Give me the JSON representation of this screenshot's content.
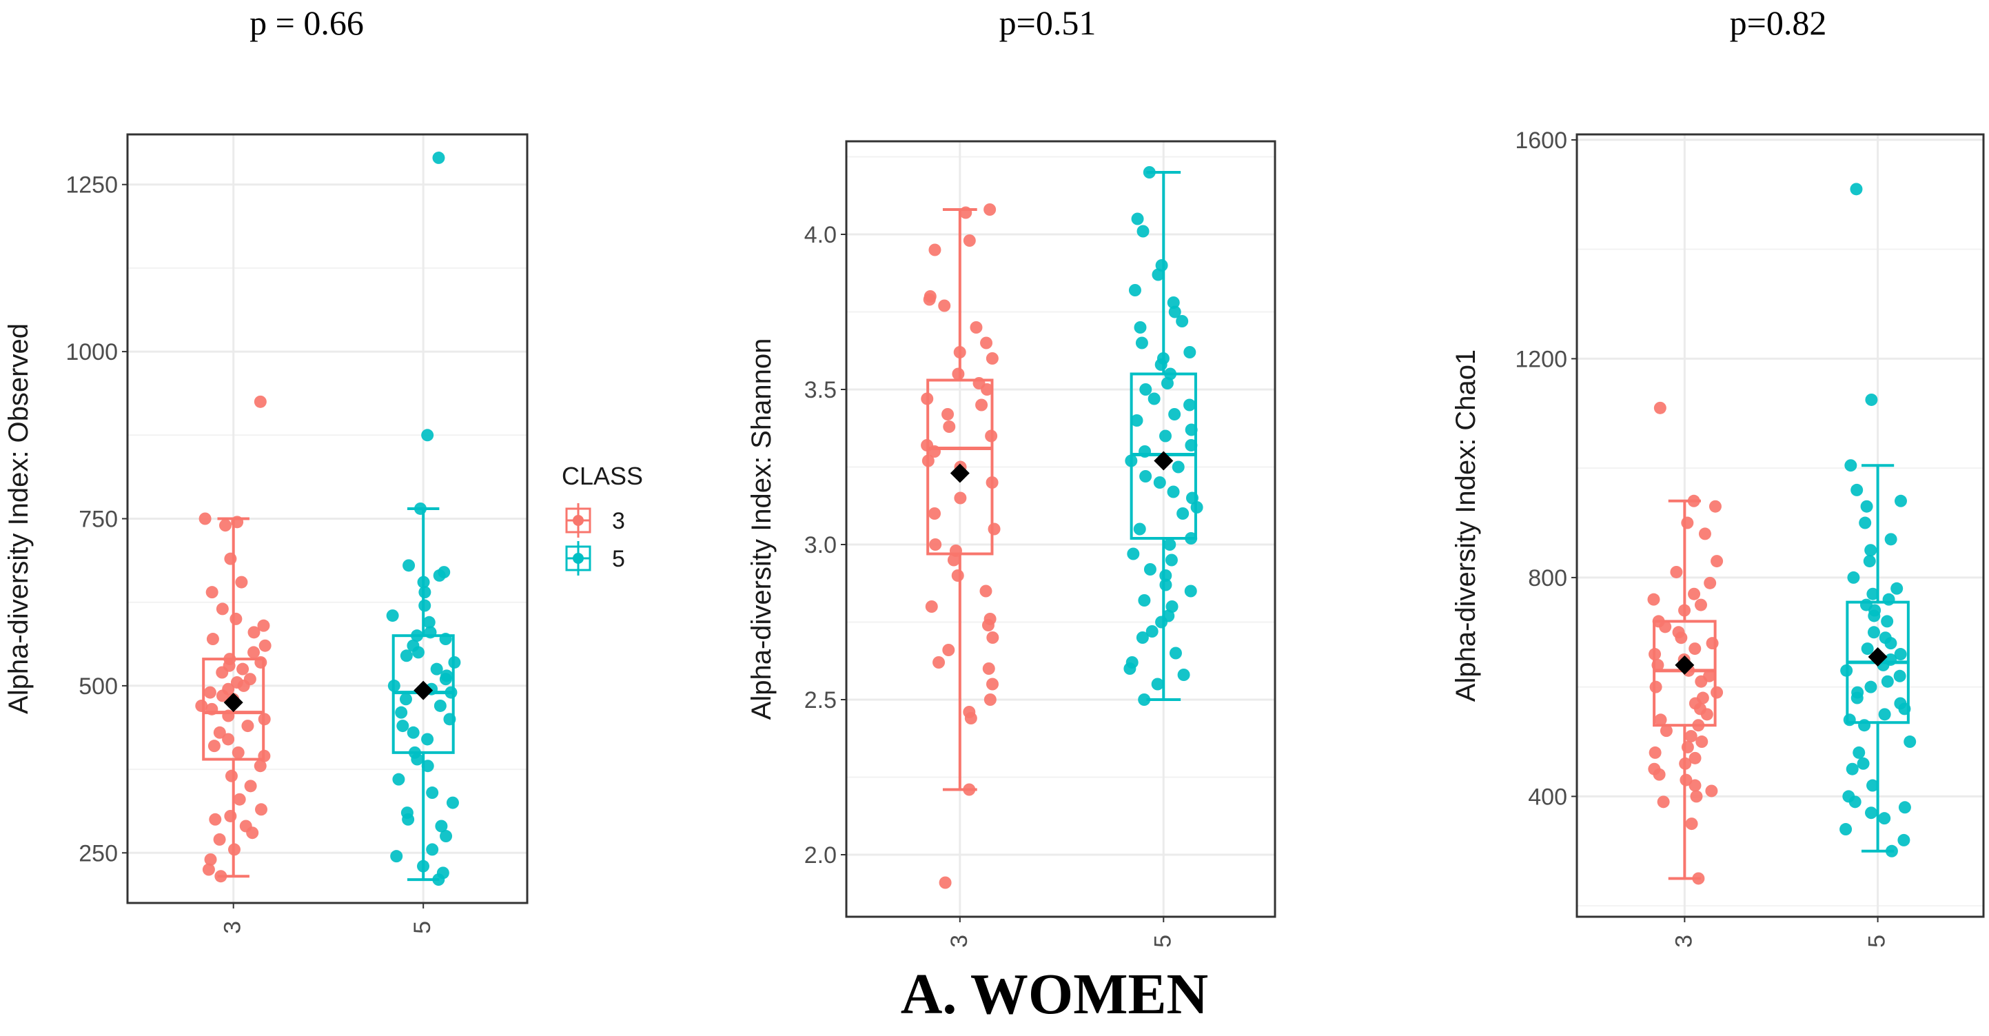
{
  "caption": "A.   WOMEN",
  "colors": {
    "class3": "#F8766D",
    "class5": "#00BFC4",
    "mean": "#000000",
    "grid": "#ebebeb",
    "panel_border": "#333333"
  },
  "legend": {
    "title": "CLASS",
    "entries": [
      "3",
      "5"
    ]
  },
  "chart_data": [
    {
      "type": "box",
      "title": "p = 0.66",
      "ylabel": "Alpha-diversity Index: Observed",
      "ylim": [
        175,
        1325
      ],
      "yticks": [
        250,
        500,
        750,
        1000,
        1250
      ],
      "ytick_labels": [
        "250",
        "500",
        "750",
        "1000",
        "1250"
      ],
      "categories": [
        "3",
        "5"
      ],
      "boxes": [
        {
          "name": "3",
          "whisker_low": 215,
          "q1": 390,
          "median": 460,
          "q3": 540,
          "whisker_high": 750,
          "mean": 475,
          "outliers": [
            925
          ]
        },
        {
          "name": "5",
          "whisker_low": 210,
          "q1": 400,
          "median": 490,
          "q3": 575,
          "whisker_high": 765,
          "mean": 493,
          "outliers": [
            1290,
            875
          ]
        }
      ],
      "points": {
        "3": [
          925,
          750,
          745,
          740,
          690,
          655,
          640,
          615,
          600,
          590,
          580,
          570,
          560,
          550,
          540,
          535,
          530,
          525,
          520,
          510,
          505,
          500,
          495,
          490,
          485,
          480,
          470,
          465,
          455,
          450,
          440,
          430,
          420,
          410,
          400,
          395,
          380,
          365,
          350,
          330,
          315,
          305,
          300,
          290,
          280,
          270,
          255,
          240,
          225,
          215
        ],
        "5": [
          1290,
          875,
          765,
          680,
          670,
          665,
          655,
          640,
          620,
          605,
          595,
          580,
          575,
          570,
          560,
          550,
          545,
          535,
          525,
          515,
          510,
          500,
          495,
          490,
          480,
          470,
          460,
          450,
          440,
          430,
          420,
          400,
          390,
          380,
          360,
          340,
          325,
          310,
          300,
          290,
          275,
          255,
          245,
          230,
          220,
          210
        ]
      }
    },
    {
      "type": "box",
      "title": "p=0.51",
      "ylabel": "Alpha-diversity Index: Shannon",
      "ylim": [
        1.8,
        4.3
      ],
      "yticks": [
        2.0,
        2.5,
        3.0,
        3.5,
        4.0
      ],
      "ytick_labels": [
        "2.0",
        "2.5",
        "3.0",
        "3.5",
        "4.0"
      ],
      "categories": [
        "3",
        "5"
      ],
      "boxes": [
        {
          "name": "3",
          "whisker_low": 2.21,
          "q1": 2.97,
          "median": 3.31,
          "q3": 3.53,
          "whisker_high": 4.08,
          "mean": 3.23,
          "outliers": [
            1.91
          ]
        },
        {
          "name": "5",
          "whisker_low": 2.5,
          "q1": 3.02,
          "median": 3.29,
          "q3": 3.55,
          "whisker_high": 4.2,
          "mean": 3.27,
          "outliers": []
        }
      ],
      "points": {
        "3": [
          4.08,
          4.07,
          3.98,
          3.95,
          3.8,
          3.79,
          3.77,
          3.7,
          3.65,
          3.62,
          3.6,
          3.55,
          3.52,
          3.5,
          3.47,
          3.45,
          3.42,
          3.38,
          3.35,
          3.32,
          3.3,
          3.27,
          3.25,
          3.2,
          3.15,
          3.1,
          3.05,
          3.0,
          2.98,
          2.95,
          2.9,
          2.85,
          2.8,
          2.76,
          2.74,
          2.7,
          2.66,
          2.62,
          2.6,
          2.55,
          2.5,
          2.46,
          2.44,
          2.21,
          1.91
        ],
        "5": [
          4.2,
          4.05,
          4.01,
          3.9,
          3.87,
          3.82,
          3.78,
          3.75,
          3.72,
          3.7,
          3.65,
          3.62,
          3.6,
          3.58,
          3.55,
          3.52,
          3.5,
          3.47,
          3.45,
          3.42,
          3.4,
          3.37,
          3.35,
          3.32,
          3.3,
          3.27,
          3.25,
          3.22,
          3.2,
          3.17,
          3.15,
          3.12,
          3.1,
          3.05,
          3.02,
          3.0,
          2.97,
          2.95,
          2.92,
          2.9,
          2.87,
          2.85,
          2.82,
          2.8,
          2.77,
          2.75,
          2.72,
          2.7,
          2.65,
          2.62,
          2.6,
          2.58,
          2.55,
          2.5
        ]
      }
    },
    {
      "type": "box",
      "title": "p=0.82",
      "ylabel": "Alpha-diversity Index: Chao1",
      "ylim": [
        180,
        1610
      ],
      "yticks": [
        400,
        800,
        1200,
        1600
      ],
      "ytick_labels": [
        "400",
        "800",
        "1200",
        "1600"
      ],
      "categories": [
        "3",
        "5"
      ],
      "boxes": [
        {
          "name": "3",
          "whisker_low": 250,
          "q1": 530,
          "median": 630,
          "q3": 720,
          "whisker_high": 940,
          "mean": 640,
          "outliers": [
            1110
          ]
        },
        {
          "name": "5",
          "whisker_low": 300,
          "q1": 535,
          "median": 645,
          "q3": 755,
          "whisker_high": 1005,
          "mean": 655,
          "outliers": [
            1510,
            1125
          ]
        }
      ],
      "points": {
        "3": [
          1110,
          940,
          930,
          900,
          880,
          830,
          810,
          790,
          770,
          760,
          750,
          740,
          720,
          710,
          700,
          690,
          680,
          670,
          660,
          650,
          640,
          630,
          620,
          610,
          600,
          590,
          580,
          570,
          560,
          550,
          540,
          530,
          520,
          510,
          500,
          490,
          480,
          470,
          460,
          450,
          440,
          430,
          420,
          410,
          400,
          390,
          350,
          250
        ],
        "5": [
          1510,
          1125,
          1005,
          960,
          940,
          930,
          900,
          870,
          850,
          830,
          800,
          780,
          770,
          760,
          750,
          740,
          730,
          720,
          700,
          690,
          680,
          670,
          660,
          650,
          640,
          630,
          620,
          610,
          600,
          590,
          580,
          570,
          560,
          550,
          540,
          530,
          500,
          480,
          460,
          450,
          420,
          400,
          390,
          380,
          370,
          360,
          340,
          320,
          300
        ]
      }
    }
  ]
}
